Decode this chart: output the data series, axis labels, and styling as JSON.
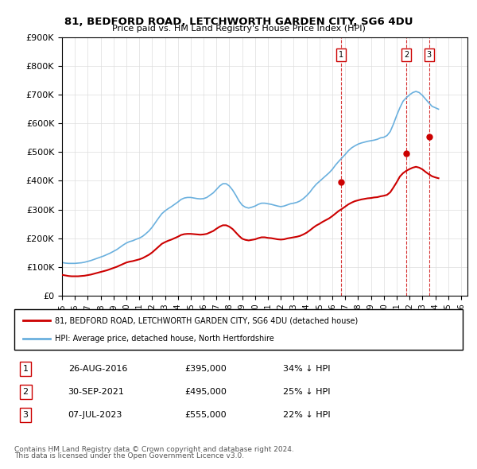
{
  "title": "81, BEDFORD ROAD, LETCHWORTH GARDEN CITY, SG6 4DU",
  "subtitle": "Price paid vs. HM Land Registry's House Price Index (HPI)",
  "ylabel_ticks": [
    "£0",
    "£100K",
    "£200K",
    "£300K",
    "£400K",
    "£500K",
    "£600K",
    "£700K",
    "£800K",
    "£900K"
  ],
  "ytick_vals": [
    0,
    100000,
    200000,
    300000,
    400000,
    500000,
    600000,
    700000,
    800000,
    900000
  ],
  "ylim": [
    0,
    900000
  ],
  "xlim_min": 1995.0,
  "xlim_max": 2026.5,
  "hpi_color": "#6ab0de",
  "price_color": "#cc0000",
  "vline_color": "#cc0000",
  "transactions": [
    {
      "num": 1,
      "date": "26-AUG-2016",
      "price": 395000,
      "pct": "34%",
      "x": 2016.65
    },
    {
      "num": 2,
      "date": "30-SEP-2021",
      "price": 495000,
      "pct": "25%",
      "x": 2021.75
    },
    {
      "num": 3,
      "date": "07-JUL-2023",
      "price": 555000,
      "pct": "22%",
      "x": 2023.52
    }
  ],
  "legend_line1": "81, BEDFORD ROAD, LETCHWORTH GARDEN CITY, SG6 4DU (detached house)",
  "legend_line2": "HPI: Average price, detached house, North Hertfordshire",
  "footer1": "Contains HM Land Registry data © Crown copyright and database right 2024.",
  "footer2": "This data is licensed under the Open Government Licence v3.0.",
  "hpi_data_x": [
    1995.0,
    1995.25,
    1995.5,
    1995.75,
    1996.0,
    1996.25,
    1996.5,
    1996.75,
    1997.0,
    1997.25,
    1997.5,
    1997.75,
    1998.0,
    1998.25,
    1998.5,
    1998.75,
    1999.0,
    1999.25,
    1999.5,
    1999.75,
    2000.0,
    2000.25,
    2000.5,
    2000.75,
    2001.0,
    2001.25,
    2001.5,
    2001.75,
    2002.0,
    2002.25,
    2002.5,
    2002.75,
    2003.0,
    2003.25,
    2003.5,
    2003.75,
    2004.0,
    2004.25,
    2004.5,
    2004.75,
    2005.0,
    2005.25,
    2005.5,
    2005.75,
    2006.0,
    2006.25,
    2006.5,
    2006.75,
    2007.0,
    2007.25,
    2007.5,
    2007.75,
    2008.0,
    2008.25,
    2008.5,
    2008.75,
    2009.0,
    2009.25,
    2009.5,
    2009.75,
    2010.0,
    2010.25,
    2010.5,
    2010.75,
    2011.0,
    2011.25,
    2011.5,
    2011.75,
    2012.0,
    2012.25,
    2012.5,
    2012.75,
    2013.0,
    2013.25,
    2013.5,
    2013.75,
    2014.0,
    2014.25,
    2014.5,
    2014.75,
    2015.0,
    2015.25,
    2015.5,
    2015.75,
    2016.0,
    2016.25,
    2016.5,
    2016.75,
    2017.0,
    2017.25,
    2017.5,
    2017.75,
    2018.0,
    2018.25,
    2018.5,
    2018.75,
    2019.0,
    2019.25,
    2019.5,
    2019.75,
    2020.0,
    2020.25,
    2020.5,
    2020.75,
    2021.0,
    2021.25,
    2021.5,
    2021.75,
    2022.0,
    2022.25,
    2022.5,
    2022.75,
    2023.0,
    2023.25,
    2023.5,
    2023.75,
    2024.0,
    2024.25
  ],
  "hpi_data_y": [
    115000,
    113000,
    112000,
    112000,
    112000,
    113000,
    114000,
    116000,
    119000,
    122000,
    126000,
    130000,
    134000,
    138000,
    143000,
    148000,
    154000,
    160000,
    168000,
    176000,
    183000,
    188000,
    191000,
    196000,
    200000,
    206000,
    215000,
    225000,
    238000,
    254000,
    270000,
    285000,
    295000,
    303000,
    310000,
    318000,
    326000,
    335000,
    340000,
    342000,
    342000,
    340000,
    338000,
    337000,
    338000,
    342000,
    350000,
    358000,
    370000,
    382000,
    390000,
    390000,
    382000,
    368000,
    350000,
    330000,
    315000,
    308000,
    305000,
    308000,
    312000,
    318000,
    322000,
    322000,
    320000,
    318000,
    315000,
    312000,
    310000,
    312000,
    316000,
    320000,
    322000,
    325000,
    330000,
    338000,
    348000,
    360000,
    375000,
    388000,
    398000,
    408000,
    418000,
    428000,
    440000,
    455000,
    468000,
    480000,
    492000,
    505000,
    515000,
    522000,
    528000,
    532000,
    535000,
    538000,
    540000,
    542000,
    545000,
    550000,
    552000,
    558000,
    572000,
    598000,
    628000,
    655000,
    678000,
    690000,
    700000,
    708000,
    712000,
    708000,
    698000,
    685000,
    672000,
    660000,
    655000,
    650000
  ],
  "price_data_x": [
    1995.0,
    1995.25,
    1995.5,
    1995.75,
    1996.0,
    1996.25,
    1996.5,
    1996.75,
    1997.0,
    1997.25,
    1997.5,
    1997.75,
    1998.0,
    1998.25,
    1998.5,
    1998.75,
    1999.0,
    1999.25,
    1999.5,
    1999.75,
    2000.0,
    2000.25,
    2000.5,
    2000.75,
    2001.0,
    2001.25,
    2001.5,
    2001.75,
    2002.0,
    2002.25,
    2002.5,
    2002.75,
    2003.0,
    2003.25,
    2003.5,
    2003.75,
    2004.0,
    2004.25,
    2004.5,
    2004.75,
    2005.0,
    2005.25,
    2005.5,
    2005.75,
    2006.0,
    2006.25,
    2006.5,
    2006.75,
    2007.0,
    2007.25,
    2007.5,
    2007.75,
    2008.0,
    2008.25,
    2008.5,
    2008.75,
    2009.0,
    2009.25,
    2009.5,
    2009.75,
    2010.0,
    2010.25,
    2010.5,
    2010.75,
    2011.0,
    2011.25,
    2011.5,
    2011.75,
    2012.0,
    2012.25,
    2012.5,
    2012.75,
    2013.0,
    2013.25,
    2013.5,
    2013.75,
    2014.0,
    2014.25,
    2014.5,
    2014.75,
    2015.0,
    2015.25,
    2015.5,
    2015.75,
    2016.0,
    2016.25,
    2016.5,
    2016.75,
    2017.0,
    2017.25,
    2017.5,
    2017.75,
    2018.0,
    2018.25,
    2018.5,
    2018.75,
    2019.0,
    2019.25,
    2019.5,
    2019.75,
    2020.0,
    2020.25,
    2020.5,
    2020.75,
    2021.0,
    2021.25,
    2021.5,
    2021.75,
    2022.0,
    2022.25,
    2022.5,
    2022.75,
    2023.0,
    2023.25,
    2023.5,
    2023.75,
    2024.0,
    2024.25
  ],
  "price_data_y": [
    72000,
    70000,
    68000,
    67000,
    67000,
    67000,
    68000,
    69000,
    71000,
    73000,
    76000,
    79000,
    82000,
    85000,
    88000,
    92000,
    96000,
    100000,
    105000,
    110000,
    115000,
    118000,
    120000,
    123000,
    126000,
    130000,
    136000,
    142000,
    150000,
    160000,
    170000,
    180000,
    186000,
    191000,
    195000,
    200000,
    205000,
    211000,
    214000,
    215000,
    215000,
    214000,
    213000,
    212000,
    213000,
    215000,
    220000,
    225000,
    233000,
    240000,
    245000,
    245000,
    240000,
    232000,
    220000,
    208000,
    198000,
    194000,
    192000,
    194000,
    196000,
    200000,
    203000,
    203000,
    201000,
    200000,
    198000,
    196000,
    195000,
    196000,
    199000,
    201000,
    203000,
    205000,
    208000,
    213000,
    219000,
    227000,
    236000,
    244000,
    250000,
    257000,
    263000,
    269000,
    277000,
    286000,
    295000,
    302000,
    310000,
    318000,
    324000,
    329000,
    332000,
    335000,
    337000,
    339000,
    340000,
    342000,
    343000,
    346000,
    348000,
    351000,
    360000,
    377000,
    395000,
    415000,
    427000,
    435000,
    441000,
    446000,
    449000,
    446000,
    440000,
    431000,
    423000,
    416000,
    412000,
    409000
  ]
}
